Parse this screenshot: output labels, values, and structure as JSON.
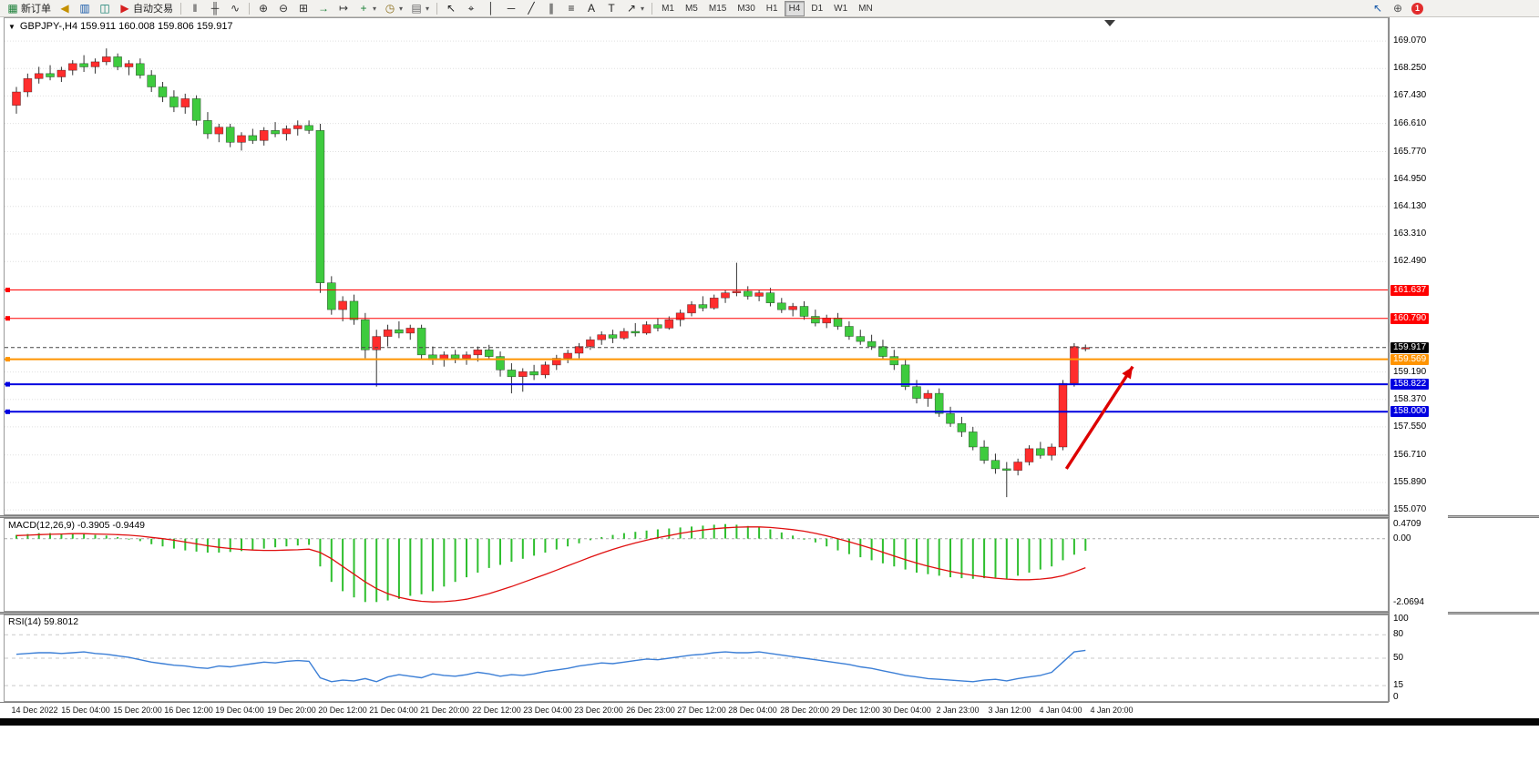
{
  "toolbar": {
    "items": [
      {
        "name": "new-order-button",
        "glyph": "▦",
        "glyph_color": "#1a7f37",
        "label": "新订单"
      },
      {
        "name": "sound-alert-button",
        "glyph": "◀",
        "glyph_color": "#c49000"
      },
      {
        "name": "charts-window-button",
        "glyph": "▥",
        "glyph_color": "#1558a8"
      },
      {
        "name": "data-window-button",
        "glyph": "◫",
        "glyph_color": "#0b7a6b"
      },
      {
        "name": "auto-trading-button",
        "glyph": "▶",
        "glyph_color": "#d61f1f",
        "label": "自动交易"
      },
      {
        "name": "sep"
      },
      {
        "name": "bar-chart-button",
        "glyph": "‖",
        "glyph_color": "#333333"
      },
      {
        "name": "candlestick-chart-button",
        "glyph": "╫",
        "glyph_color": "#333333"
      },
      {
        "name": "line-chart-button",
        "glyph": "∿",
        "glyph_color": "#333333"
      },
      {
        "name": "sep"
      },
      {
        "name": "zoom-in-button",
        "glyph": "⊕",
        "glyph_color": "#333333"
      },
      {
        "name": "zoom-out-button",
        "glyph": "⊖",
        "glyph_color": "#333333"
      },
      {
        "name": "tile-windows-button",
        "glyph": "⊞",
        "glyph_color": "#333333"
      },
      {
        "name": "auto-scroll-button",
        "glyph": "→",
        "glyph_color": "#1a7f37"
      },
      {
        "name": "chart-shift-button",
        "glyph": "↦",
        "glyph_color": "#333333"
      },
      {
        "name": "indicators-button",
        "glyph": "+",
        "glyph_color": "#1a7f37",
        "dropdown": true
      },
      {
        "name": "periods-button",
        "glyph": "◷",
        "glyph_color": "#8a6d1a",
        "dropdown": true
      },
      {
        "name": "templates-button",
        "glyph": "▤",
        "glyph_color": "#666666",
        "dropdown": true
      },
      {
        "name": "sep"
      },
      {
        "name": "cursor-button",
        "glyph": "↖",
        "glyph_color": "#222222"
      },
      {
        "name": "crosshair-button",
        "glyph": "⌖",
        "glyph_color": "#222222"
      },
      {
        "name": "vertical-line-button",
        "glyph": "│",
        "glyph_color": "#222222"
      },
      {
        "name": "horizontal-line-button",
        "glyph": "─",
        "glyph_color": "#222222"
      },
      {
        "name": "trendline-button",
        "glyph": "╱",
        "glyph_color": "#222222"
      },
      {
        "name": "channel-button",
        "glyph": "∥",
        "glyph_color": "#222222"
      },
      {
        "name": "fibonacci-button",
        "glyph": "≡",
        "glyph_color": "#222222"
      },
      {
        "name": "text-button",
        "glyph": "A",
        "glyph_color": "#222222"
      },
      {
        "name": "text-label-button",
        "glyph": "T",
        "glyph_color": "#222222"
      },
      {
        "name": "arrows-button",
        "glyph": "↗",
        "glyph_color": "#222222",
        "dropdown": true
      },
      {
        "name": "sep"
      }
    ],
    "timeframes": [
      {
        "label": "M1"
      },
      {
        "label": "M5"
      },
      {
        "label": "M15"
      },
      {
        "label": "M30"
      },
      {
        "label": "H1"
      },
      {
        "label": "H4",
        "active": true
      },
      {
        "label": "D1"
      },
      {
        "label": "W1"
      },
      {
        "label": "MN"
      }
    ],
    "right_icons": [
      {
        "name": "cursor-mode-icon",
        "glyph": "↖",
        "glyph_color": "#1558a8"
      },
      {
        "name": "magnifier-icon",
        "glyph": "⊕",
        "glyph_color": "#555555"
      }
    ],
    "notification_count": "1"
  },
  "chart": {
    "symbol_line": "GBPJPY-,H4  159.911 160.008 159.806 159.917",
    "dropdown_glyph": "▼",
    "colors": {
      "bull": "#ff2d2d",
      "bear": "#3ecb3e",
      "wick": "#333333",
      "grid": "#e0e0e0",
      "border": "#9a9a9a",
      "current_line": "#444444",
      "current_tag": "#000000",
      "macd_hist": "#2fbf2f",
      "macd_signal": "#e01010",
      "rsi_line": "#3c7fd6",
      "arrow": "#dd0000"
    }
  },
  "panels": {
    "macd_label": "MACD(12,26,9) -0.3905 -0.9449",
    "rsi_label": "RSI(14) 59.8012"
  },
  "chart_data": {
    "type": "candlestick",
    "symbol": "GBPJPY-",
    "timeframe": "H4",
    "current": {
      "open": 159.911,
      "high": 160.008,
      "low": 159.806,
      "close": 159.917
    },
    "y_ticks": [
      169.07,
      168.25,
      167.43,
      166.61,
      165.77,
      164.95,
      164.13,
      163.31,
      162.49,
      159.19,
      158.37,
      157.55,
      156.71,
      155.89,
      155.07
    ],
    "hlines": [
      {
        "price": 161.637,
        "color": "#ff0000",
        "width": 1
      },
      {
        "price": 160.79,
        "color": "#ff0000",
        "width": 1
      },
      {
        "price": 159.569,
        "color": "#ff9400",
        "width": 2
      },
      {
        "price": 158.822,
        "color": "#0000e0",
        "width": 2
      },
      {
        "price": 158.0,
        "color": "#0000e0",
        "width": 2
      }
    ],
    "ohlc": [
      [
        167.15,
        167.7,
        166.9,
        167.55
      ],
      [
        167.55,
        168.1,
        167.4,
        167.95
      ],
      [
        167.95,
        168.3,
        167.8,
        168.1
      ],
      [
        168.1,
        168.35,
        167.9,
        168.0
      ],
      [
        168.0,
        168.3,
        167.85,
        168.2
      ],
      [
        168.2,
        168.5,
        168.05,
        168.4
      ],
      [
        168.4,
        168.65,
        168.15,
        168.3
      ],
      [
        168.3,
        168.55,
        168.1,
        168.45
      ],
      [
        168.45,
        168.85,
        168.35,
        168.6
      ],
      [
        168.6,
        168.7,
        168.2,
        168.3
      ],
      [
        168.3,
        168.5,
        168.05,
        168.4
      ],
      [
        168.4,
        168.55,
        167.95,
        168.05
      ],
      [
        168.05,
        168.2,
        167.55,
        167.7
      ],
      [
        167.7,
        167.85,
        167.25,
        167.4
      ],
      [
        167.4,
        167.6,
        166.95,
        167.1
      ],
      [
        167.1,
        167.5,
        166.9,
        167.35
      ],
      [
        167.35,
        167.45,
        166.55,
        166.7
      ],
      [
        166.7,
        166.95,
        166.15,
        166.3
      ],
      [
        166.3,
        166.6,
        166.05,
        166.5
      ],
      [
        166.5,
        166.6,
        165.9,
        166.05
      ],
      [
        166.05,
        166.35,
        165.8,
        166.25
      ],
      [
        166.25,
        166.45,
        166.0,
        166.1
      ],
      [
        166.1,
        166.5,
        165.95,
        166.4
      ],
      [
        166.4,
        166.65,
        166.2,
        166.3
      ],
      [
        166.3,
        166.55,
        166.1,
        166.45
      ],
      [
        166.45,
        166.7,
        166.25,
        166.55
      ],
      [
        166.55,
        166.7,
        166.3,
        166.4
      ],
      [
        166.4,
        166.6,
        161.55,
        161.85
      ],
      [
        161.85,
        162.05,
        160.9,
        161.05
      ],
      [
        161.05,
        161.45,
        160.7,
        161.3
      ],
      [
        161.3,
        161.5,
        160.6,
        160.75
      ],
      [
        160.75,
        160.95,
        159.6,
        159.85
      ],
      [
        159.85,
        160.45,
        158.75,
        160.25
      ],
      [
        160.25,
        160.6,
        159.95,
        160.45
      ],
      [
        160.45,
        160.7,
        160.2,
        160.35
      ],
      [
        160.35,
        160.6,
        160.15,
        160.5
      ],
      [
        160.5,
        160.6,
        159.55,
        159.7
      ],
      [
        159.7,
        159.95,
        159.4,
        159.55
      ],
      [
        159.55,
        159.8,
        159.35,
        159.7
      ],
      [
        159.7,
        159.85,
        159.45,
        159.6
      ],
      [
        159.6,
        159.8,
        159.4,
        159.7
      ],
      [
        159.7,
        159.95,
        159.5,
        159.85
      ],
      [
        159.85,
        160.0,
        159.55,
        159.65
      ],
      [
        159.65,
        159.8,
        159.05,
        159.25
      ],
      [
        159.25,
        159.45,
        158.55,
        159.05
      ],
      [
        159.05,
        159.3,
        158.6,
        159.2
      ],
      [
        159.2,
        159.4,
        158.95,
        159.1
      ],
      [
        159.1,
        159.5,
        159.0,
        159.4
      ],
      [
        159.4,
        159.7,
        159.25,
        159.6
      ],
      [
        159.6,
        159.85,
        159.45,
        159.75
      ],
      [
        159.75,
        160.05,
        159.6,
        159.95
      ],
      [
        159.95,
        160.25,
        159.85,
        160.15
      ],
      [
        160.15,
        160.4,
        160.0,
        160.3
      ],
      [
        160.3,
        160.45,
        160.05,
        160.2
      ],
      [
        160.2,
        160.5,
        160.15,
        160.4
      ],
      [
        160.4,
        160.65,
        160.25,
        160.35
      ],
      [
        160.35,
        160.7,
        160.3,
        160.6
      ],
      [
        160.6,
        160.8,
        160.4,
        160.5
      ],
      [
        160.5,
        160.85,
        160.45,
        160.75
      ],
      [
        160.75,
        161.05,
        160.55,
        160.95
      ],
      [
        160.95,
        161.3,
        160.85,
        161.2
      ],
      [
        161.2,
        161.45,
        161.0,
        161.1
      ],
      [
        161.1,
        161.5,
        161.05,
        161.4
      ],
      [
        161.4,
        161.65,
        161.25,
        161.55
      ],
      [
        161.55,
        162.45,
        161.45,
        161.6
      ],
      [
        161.6,
        161.75,
        161.35,
        161.45
      ],
      [
        161.45,
        161.65,
        161.3,
        161.55
      ],
      [
        161.55,
        161.7,
        161.15,
        161.25
      ],
      [
        161.25,
        161.4,
        160.95,
        161.05
      ],
      [
        161.05,
        161.25,
        160.85,
        161.15
      ],
      [
        161.15,
        161.3,
        160.75,
        160.85
      ],
      [
        160.85,
        161.05,
        160.55,
        160.65
      ],
      [
        160.65,
        160.9,
        160.5,
        160.8
      ],
      [
        160.8,
        160.95,
        160.45,
        160.55
      ],
      [
        160.55,
        160.7,
        160.15,
        160.25
      ],
      [
        160.25,
        160.45,
        160.0,
        160.1
      ],
      [
        160.1,
        160.3,
        159.85,
        159.95
      ],
      [
        159.95,
        160.15,
        159.55,
        159.65
      ],
      [
        159.65,
        159.85,
        159.25,
        159.4
      ],
      [
        159.4,
        159.55,
        158.65,
        158.75
      ],
      [
        158.75,
        158.95,
        158.25,
        158.4
      ],
      [
        158.4,
        158.65,
        158.15,
        158.55
      ],
      [
        158.55,
        158.7,
        157.85,
        157.95
      ],
      [
        157.95,
        158.15,
        157.55,
        157.65
      ],
      [
        157.65,
        157.85,
        157.25,
        157.4
      ],
      [
        157.4,
        157.55,
        156.85,
        156.95
      ],
      [
        156.95,
        157.15,
        156.45,
        156.55
      ],
      [
        156.55,
        156.75,
        156.15,
        156.3
      ],
      [
        156.3,
        156.5,
        155.45,
        156.25
      ],
      [
        156.25,
        156.6,
        156.1,
        156.5
      ],
      [
        156.5,
        157.0,
        156.4,
        156.9
      ],
      [
        156.9,
        157.1,
        156.6,
        156.7
      ],
      [
        156.7,
        157.05,
        156.55,
        156.95
      ],
      [
        156.95,
        158.95,
        156.85,
        158.85
      ],
      [
        158.85,
        160.05,
        158.75,
        159.95
      ],
      [
        159.911,
        160.008,
        159.806,
        159.917
      ]
    ],
    "x_labels": [
      "14 Dec 2022",
      "15 Dec 04:00",
      "15 Dec 20:00",
      "16 Dec 12:00",
      "19 Dec 04:00",
      "19 Dec 20:00",
      "20 Dec 12:00",
      "21 Dec 04:00",
      "21 Dec 20:00",
      "22 Dec 12:00",
      "23 Dec 04:00",
      "23 Dec 20:00",
      "26 Dec 23:00",
      "27 Dec 12:00",
      "28 Dec 04:00",
      "28 Dec 20:00",
      "29 Dec 12:00",
      "30 Dec 04:00",
      "2 Jan 23:00",
      "3 Jan 12:00",
      "4 Jan 04:00",
      "4 Jan 20:00"
    ],
    "macd": {
      "params": "12,26,9",
      "value": -0.3905,
      "signal_value": -0.9449,
      "ticks": [
        {
          "label": "0.4709",
          "value": 0.4709
        },
        {
          "label": "0.00",
          "value": 0
        },
        {
          "label": "-2.0694",
          "value": -2.0694
        }
      ],
      "hist": [
        0.12,
        0.15,
        0.18,
        0.18,
        0.15,
        0.18,
        0.15,
        0.12,
        0.1,
        0.05,
        0.0,
        -0.08,
        -0.18,
        -0.25,
        -0.32,
        -0.38,
        -0.42,
        -0.45,
        -0.45,
        -0.43,
        -0.4,
        -0.36,
        -0.32,
        -0.28,
        -0.25,
        -0.22,
        -0.2,
        -0.9,
        -1.4,
        -1.7,
        -1.9,
        -2.05,
        -2.05,
        -2.0,
        -1.95,
        -1.85,
        -1.8,
        -1.7,
        -1.55,
        -1.4,
        -1.25,
        -1.1,
        -0.95,
        -0.85,
        -0.75,
        -0.65,
        -0.55,
        -0.45,
        -0.35,
        -0.25,
        -0.15,
        -0.05,
        0.05,
        0.12,
        0.18,
        0.22,
        0.26,
        0.3,
        0.33,
        0.36,
        0.39,
        0.42,
        0.45,
        0.47,
        0.45,
        0.41,
        0.36,
        0.3,
        0.2,
        0.1,
        0.0,
        -0.12,
        -0.25,
        -0.38,
        -0.5,
        -0.6,
        -0.7,
        -0.8,
        -0.9,
        -1.0,
        -1.1,
        -1.15,
        -1.2,
        -1.25,
        -1.28,
        -1.3,
        -1.28,
        -1.26,
        -1.3,
        -1.2,
        -1.1,
        -1.0,
        -0.9,
        -0.7,
        -0.52,
        -0.39
      ],
      "signal": [
        0.1,
        0.11,
        0.13,
        0.14,
        0.15,
        0.16,
        0.16,
        0.15,
        0.14,
        0.13,
        0.11,
        0.08,
        0.04,
        0.0,
        -0.05,
        -0.11,
        -0.17,
        -0.23,
        -0.28,
        -0.32,
        -0.35,
        -0.37,
        -0.38,
        -0.38,
        -0.37,
        -0.36,
        -0.34,
        -0.45,
        -0.65,
        -0.9,
        -1.15,
        -1.4,
        -1.62,
        -1.78,
        -1.9,
        -1.98,
        -2.03,
        -2.05,
        -2.04,
        -2.01,
        -1.96,
        -1.88,
        -1.78,
        -1.67,
        -1.55,
        -1.42,
        -1.29,
        -1.16,
        -1.02,
        -0.88,
        -0.74,
        -0.6,
        -0.47,
        -0.35,
        -0.24,
        -0.14,
        -0.05,
        0.03,
        0.1,
        0.17,
        0.23,
        0.28,
        0.32,
        0.35,
        0.37,
        0.38,
        0.38,
        0.36,
        0.33,
        0.29,
        0.24,
        0.17,
        0.09,
        0.0,
        -0.1,
        -0.21,
        -0.32,
        -0.44,
        -0.56,
        -0.68,
        -0.79,
        -0.89,
        -0.98,
        -1.06,
        -1.13,
        -1.19,
        -1.24,
        -1.28,
        -1.31,
        -1.33,
        -1.33,
        -1.31,
        -1.27,
        -1.2,
        -1.08,
        -0.94
      ]
    },
    "rsi": {
      "period": 14,
      "value": 59.8012,
      "ticks": [
        {
          "label": "100",
          "value": 100
        },
        {
          "label": "80",
          "value": 80
        },
        {
          "label": "50",
          "value": 50
        },
        {
          "label": "15",
          "value": 15
        },
        {
          "label": "0",
          "value": 0
        }
      ],
      "levels": [
        80,
        50,
        15
      ],
      "values": [
        55,
        56,
        57,
        57,
        56,
        57,
        58,
        56,
        55,
        53,
        51,
        48,
        45,
        43,
        41,
        40,
        38,
        37,
        40,
        39,
        41,
        43,
        45,
        44,
        46,
        47,
        46,
        25,
        20,
        22,
        21,
        24,
        20,
        26,
        29,
        27,
        25,
        30,
        28,
        27,
        29,
        32,
        30,
        27,
        29,
        28,
        30,
        33,
        35,
        37,
        40,
        42,
        44,
        43,
        45,
        47,
        49,
        48,
        50,
        52,
        54,
        55,
        57,
        58,
        57,
        57,
        58,
        56,
        54,
        52,
        50,
        48,
        46,
        44,
        42,
        39,
        37,
        34,
        31,
        28,
        26,
        24,
        23,
        22,
        21,
        20,
        22,
        23,
        21,
        24,
        26,
        28,
        32,
        45,
        58,
        60
      ]
    },
    "annotation_arrow": {
      "from_bar": 93.3,
      "from_price": 156.3,
      "to_bar": 99.2,
      "to_price": 159.35
    }
  }
}
